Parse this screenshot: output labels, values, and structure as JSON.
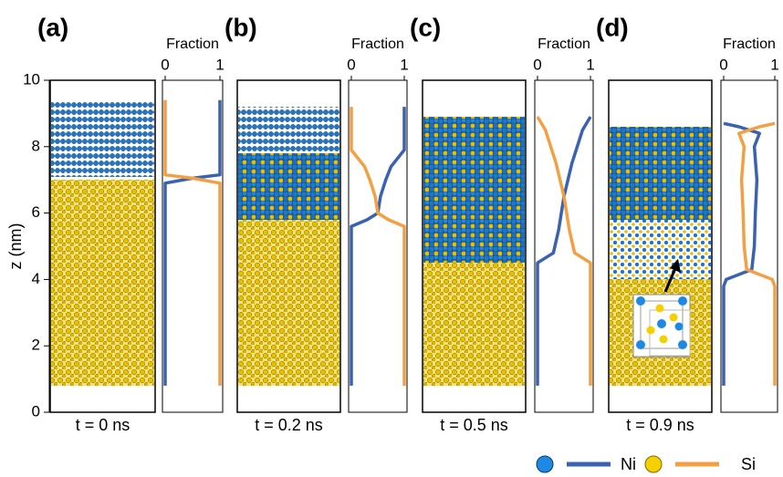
{
  "chart_data": [
    {
      "type": "line",
      "panel": "(a)",
      "time": "t = 0 ns",
      "xlabel": "Fraction",
      "ylabel": "z (nm)",
      "xlim": [
        0,
        1
      ],
      "xticks": [
        0,
        1
      ],
      "ylim": [
        0,
        10
      ],
      "yticks": [
        0,
        2,
        4,
        6,
        8,
        10
      ],
      "z": [
        0.8,
        6.9,
        7.05,
        7.15,
        9.4
      ],
      "series": [
        {
          "name": "Ni",
          "color": "#3a62b0",
          "values": [
            0,
            0,
            0.5,
            1,
            1
          ]
        },
        {
          "name": "Si",
          "color": "#f2a043",
          "values": [
            1,
            1,
            0.5,
            0,
            0
          ]
        }
      ]
    },
    {
      "type": "line",
      "panel": "(b)",
      "time": "t = 0.2 ns",
      "xlabel": "Fraction",
      "xlim": [
        0,
        1
      ],
      "xticks": [
        0,
        1
      ],
      "ylim": [
        0,
        10
      ],
      "z": [
        0.8,
        5.6,
        5.8,
        6.0,
        6.5,
        7.0,
        7.4,
        7.7,
        7.9,
        9.2
      ],
      "series": [
        {
          "name": "Ni",
          "color": "#3a62b0",
          "values": [
            0,
            0,
            0.3,
            0.5,
            0.55,
            0.65,
            0.75,
            0.9,
            1,
            1
          ]
        },
        {
          "name": "Si",
          "color": "#f2a043",
          "values": [
            1,
            1,
            0.7,
            0.5,
            0.45,
            0.35,
            0.25,
            0.1,
            0,
            0
          ]
        }
      ]
    },
    {
      "type": "line",
      "panel": "(c)",
      "time": "t = 0.5 ns",
      "xlabel": "Fraction",
      "xlim": [
        0,
        1
      ],
      "xticks": [
        0,
        1
      ],
      "ylim": [
        0,
        10
      ],
      "z": [
        0.8,
        4.5,
        4.8,
        5.5,
        6.5,
        7.5,
        8.5,
        8.9
      ],
      "series": [
        {
          "name": "Ni",
          "color": "#3a62b0",
          "values": [
            0,
            0,
            0.3,
            0.4,
            0.5,
            0.65,
            0.85,
            1
          ]
        },
        {
          "name": "Si",
          "color": "#f2a043",
          "values": [
            1,
            1,
            0.7,
            0.6,
            0.5,
            0.35,
            0.15,
            0
          ]
        }
      ]
    },
    {
      "type": "line",
      "panel": "(d)",
      "time": "t = 0.9 ns",
      "xlabel": "Fraction",
      "xlim": [
        0,
        1
      ],
      "xticks": [
        0,
        1
      ],
      "ylim": [
        0,
        10
      ],
      "z": [
        0.8,
        3.8,
        4.0,
        4.3,
        5,
        6,
        7,
        8,
        8.4,
        8.6,
        8.7
      ],
      "series": [
        {
          "name": "Ni",
          "color": "#3a62b0",
          "values": [
            0,
            0,
            0.05,
            0.55,
            0.6,
            0.62,
            0.65,
            0.6,
            0.7,
            0.3,
            0
          ]
        },
        {
          "name": "Si",
          "color": "#f2a043",
          "values": [
            1,
            1,
            0.95,
            0.45,
            0.4,
            0.38,
            0.35,
            0.4,
            0.3,
            0.7,
            1
          ]
        }
      ]
    }
  ]
}
